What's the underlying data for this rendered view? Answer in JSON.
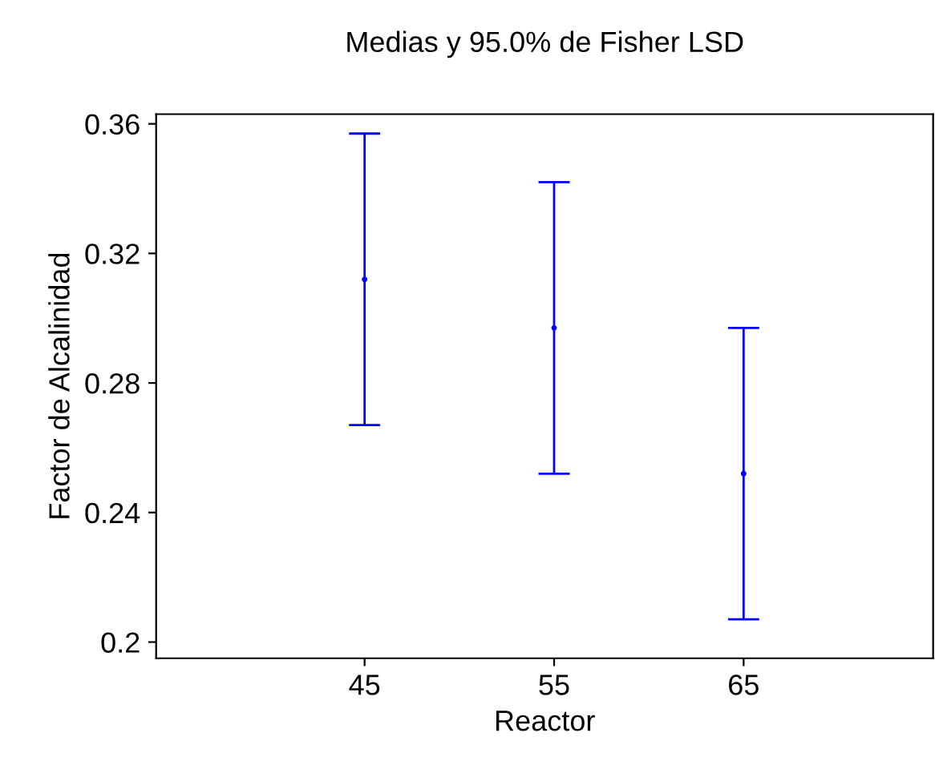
{
  "chart_data": {
    "type": "scatter",
    "title": "Medias y 95.0% de Fisher LSD",
    "xlabel": "Reactor",
    "ylabel": "Factor de Alcalinidad",
    "x": [
      45,
      55,
      65
    ],
    "series": [
      {
        "color": "#0000ff",
        "values": [
          0.312,
          0.297,
          0.252
        ],
        "errors": [
          0.045,
          0.045,
          0.045
        ]
      }
    ],
    "xlim": [
      34,
      75
    ],
    "xticks": [
      45,
      55,
      65
    ],
    "ylim": [
      0.195,
      0.363
    ],
    "yticks": [
      0.2,
      0.24,
      0.28,
      0.32,
      0.36
    ],
    "marker": "circle",
    "grid": false,
    "legend": false
  }
}
